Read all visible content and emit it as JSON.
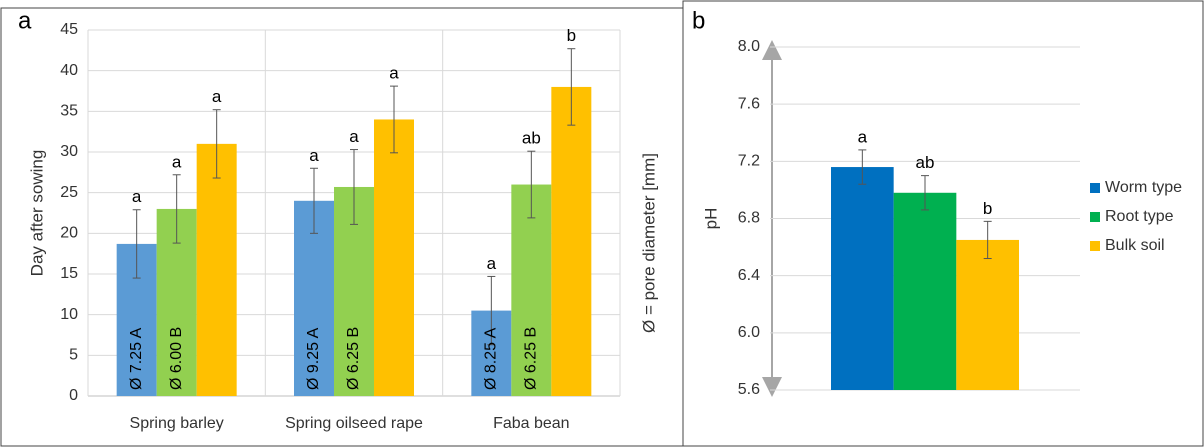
{
  "chart_data": [
    {
      "type": "bar",
      "panel_label": "a",
      "ylabel": "Day after sowing",
      "side_note": "Ø = pore diameter [mm]",
      "categories": [
        "Spring barley",
        "Spring oilseed rape",
        "Faba bean"
      ],
      "ylim": [
        0,
        45
      ],
      "yticks": [
        0,
        5,
        10,
        15,
        20,
        25,
        30,
        35,
        40,
        45
      ],
      "grid": true,
      "series": [
        {
          "color": "#5b9bd5",
          "values": [
            18.7,
            24,
            10.5
          ],
          "errors": [
            4.2,
            4,
            4.2
          ],
          "significance": [
            "a",
            "a",
            "a"
          ],
          "bar_labels": [
            "Ø 7.25 A",
            "Ø 9.25 A",
            "Ø 8.25 A"
          ]
        },
        {
          "color": "#92d050",
          "values": [
            23,
            25.7,
            26
          ],
          "errors": [
            4.2,
            4.6,
            4.1
          ],
          "significance": [
            "a",
            "a",
            "ab"
          ],
          "bar_labels": [
            "Ø 6.00 B",
            "Ø 6.25 B",
            "Ø 6.25 B"
          ]
        },
        {
          "color": "#ffc000",
          "values": [
            31,
            34,
            38
          ],
          "errors": [
            4.2,
            4.1,
            4.7
          ],
          "significance": [
            "a",
            "a",
            "b"
          ],
          "bar_labels": [
            null,
            null,
            null
          ]
        }
      ]
    },
    {
      "type": "bar",
      "panel_label": "b",
      "ylabel": "pH",
      "ylim": [
        5.6,
        8.0
      ],
      "yticks": [
        5.6,
        {
          "value": 6.0,
          "label": "6.0"
        },
        6.4,
        6.8,
        7.2,
        7.6,
        {
          "value": 8.0,
          "label": "8.0"
        }
      ],
      "grid": true,
      "legend": "right",
      "series": [
        {
          "name": "Worm type",
          "color": "#0070c0",
          "values": [
            7.16
          ],
          "errors": [
            0.12
          ],
          "significance": [
            "a"
          ]
        },
        {
          "name": "Root type",
          "color": "#00b050",
          "values": [
            6.98
          ],
          "errors": [
            0.12
          ],
          "significance": [
            "ab"
          ]
        },
        {
          "name": "Bulk soil",
          "color": "#ffc000",
          "values": [
            6.65
          ],
          "errors": [
            0.13
          ],
          "significance": [
            "b"
          ]
        }
      ]
    }
  ]
}
